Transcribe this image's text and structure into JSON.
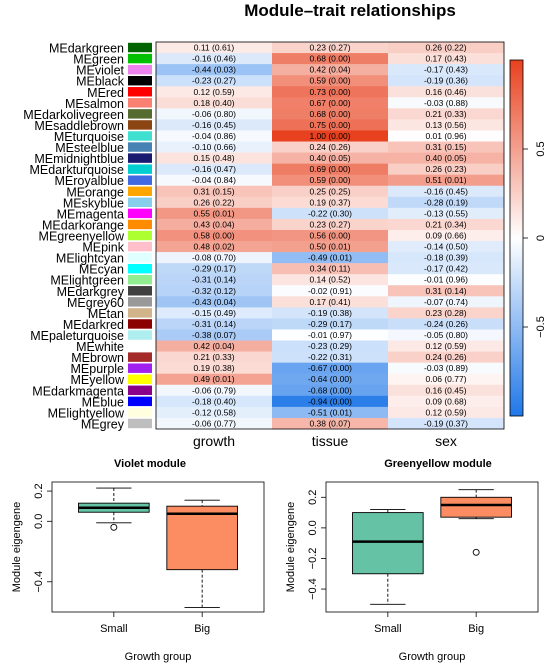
{
  "chart_data": [
    {
      "type": "heatmap",
      "title": "Module–trait relationships",
      "columns": [
        "growth",
        "tissue",
        "sex"
      ],
      "scale_ticks": [
        "0.5",
        "0",
        "−0.5"
      ],
      "scale_range": [
        -1,
        1
      ],
      "scale_colors": {
        "low": "#1f77e8",
        "mid": "#ffffff",
        "high": "#e8411f"
      },
      "rows": [
        {
          "name": "MEdarkgreen",
          "color": "#006400",
          "values": [
            0.11,
            0.23,
            0.26
          ],
          "labels": [
            "0.11 (0.61)",
            "0.23 (0.27)",
            "0.26 (0.22)"
          ]
        },
        {
          "name": "MEgreen",
          "color": "#00c000",
          "values": [
            -0.16,
            0.68,
            0.17
          ],
          "labels": [
            "-0.16 (0.46)",
            "0.68 (0.00)",
            "0.17 (0.43)"
          ]
        },
        {
          "name": "MEviolet",
          "color": "#ee82ee",
          "values": [
            -0.44,
            0.42,
            -0.17
          ],
          "labels": [
            "-0.44 (0.03)",
            "0.42 (0.04)",
            "-0.17 (0.43)"
          ]
        },
        {
          "name": "MEblack",
          "color": "#000000",
          "values": [
            -0.23,
            0.59,
            -0.19
          ],
          "labels": [
            "-0.23 (0.27)",
            "0.59 (0.00)",
            "-0.19 (0.36)"
          ]
        },
        {
          "name": "MEred",
          "color": "#ff0000",
          "values": [
            0.12,
            0.73,
            0.16
          ],
          "labels": [
            "0.12 (0.59)",
            "0.73 (0.00)",
            "0.16 (0.46)"
          ]
        },
        {
          "name": "MEsalmon",
          "color": "#fa8072",
          "values": [
            0.18,
            0.67,
            -0.03
          ],
          "labels": [
            "0.18 (0.40)",
            "0.67 (0.00)",
            "-0.03 (0.88)"
          ]
        },
        {
          "name": "MEdarkolivegreen",
          "color": "#556b2f",
          "values": [
            -0.06,
            0.68,
            0.21
          ],
          "labels": [
            "-0.06 (0.80)",
            "0.68 (0.00)",
            "0.21 (0.33)"
          ]
        },
        {
          "name": "MEsaddlebrown",
          "color": "#8b4513",
          "values": [
            -0.16,
            0.75,
            0.13
          ],
          "labels": [
            "-0.16 (0.45)",
            "0.75 (0.00)",
            "0.13 (0.56)"
          ]
        },
        {
          "name": "MEturquoise",
          "color": "#40e0d0",
          "values": [
            -0.04,
            1.0,
            0.01
          ],
          "labels": [
            "-0.04 (0.86)",
            "1.00 (0.00)",
            "0.01 (0.96)"
          ]
        },
        {
          "name": "MEsteelblue",
          "color": "#4682b4",
          "values": [
            -0.1,
            0.24,
            0.31
          ],
          "labels": [
            "-0.10 (0.66)",
            "0.24 (0.26)",
            "0.31 (0.15)"
          ]
        },
        {
          "name": "MEmidnightblue",
          "color": "#191970",
          "values": [
            0.15,
            0.4,
            0.4
          ],
          "labels": [
            "0.15 (0.48)",
            "0.40 (0.05)",
            "0.40 (0.05)"
          ]
        },
        {
          "name": "MEdarkturquoise",
          "color": "#00ced1",
          "values": [
            -0.16,
            0.69,
            0.26
          ],
          "labels": [
            "-0.16 (0.47)",
            "0.69 (0.00)",
            "0.26 (0.23)"
          ]
        },
        {
          "name": "MEroyalblue",
          "color": "#4169e1",
          "values": [
            -0.04,
            0.59,
            0.51
          ],
          "labels": [
            "-0.04 (0.84)",
            "0.59 (0.00)",
            "0.51 (0.01)"
          ]
        },
        {
          "name": "MEorange",
          "color": "#ffa500",
          "values": [
            0.31,
            0.25,
            -0.16
          ],
          "labels": [
            "0.31 (0.15)",
            "0.25 (0.25)",
            "-0.16 (0.45)"
          ]
        },
        {
          "name": "MEskyblue",
          "color": "#87ceeb",
          "values": [
            0.26,
            0.19,
            -0.28
          ],
          "labels": [
            "0.26 (0.22)",
            "0.19 (0.37)",
            "-0.28 (0.19)"
          ]
        },
        {
          "name": "MEmagenta",
          "color": "#ff00ff",
          "values": [
            0.55,
            -0.22,
            -0.13
          ],
          "labels": [
            "0.55 (0.01)",
            "-0.22 (0.30)",
            "-0.13 (0.55)"
          ]
        },
        {
          "name": "MEdarkorange",
          "color": "#ff8c00",
          "values": [
            0.43,
            0.23,
            0.21
          ],
          "labels": [
            "0.43 (0.04)",
            "0.23 (0.27)",
            "0.21 (0.34)"
          ]
        },
        {
          "name": "MEgreenyellow",
          "color": "#adff2f",
          "values": [
            0.58,
            0.56,
            0.09
          ],
          "labels": [
            "0.58 (0.00)",
            "0.56 (0.00)",
            "0.09 (0.66)"
          ]
        },
        {
          "name": "MEpink",
          "color": "#ffc0cb",
          "values": [
            0.48,
            0.5,
            -0.14
          ],
          "labels": [
            "0.48 (0.02)",
            "0.50 (0.01)",
            "-0.14 (0.50)"
          ]
        },
        {
          "name": "MElightcyan",
          "color": "#e0ffff",
          "values": [
            -0.08,
            -0.49,
            -0.18
          ],
          "labels": [
            "-0.08 (0.70)",
            "-0.49 (0.01)",
            "-0.18 (0.39)"
          ]
        },
        {
          "name": "MEcyan",
          "color": "#00ffff",
          "values": [
            -0.29,
            0.34,
            -0.17
          ],
          "labels": [
            "-0.29 (0.17)",
            "0.34 (0.11)",
            "-0.17 (0.42)"
          ]
        },
        {
          "name": "MElightgreen",
          "color": "#90ee90",
          "values": [
            -0.31,
            0.14,
            -0.01
          ],
          "labels": [
            "-0.31 (0.14)",
            "0.14 (0.52)",
            "-0.01 (0.96)"
          ]
        },
        {
          "name": "MEdarkgrey",
          "color": "#404040",
          "values": [
            -0.32,
            -0.02,
            0.31
          ],
          "labels": [
            "-0.32 (0.12)",
            "-0.02 (0.91)",
            "0.31 (0.14)"
          ]
        },
        {
          "name": "MEgrey60",
          "color": "#999999",
          "values": [
            -0.43,
            0.17,
            -0.07
          ],
          "labels": [
            "-0.43 (0.04)",
            "0.17 (0.41)",
            "-0.07 (0.74)"
          ]
        },
        {
          "name": "MEtan",
          "color": "#d2b48c",
          "values": [
            -0.15,
            -0.19,
            0.23
          ],
          "labels": [
            "-0.15 (0.49)",
            "-0.19 (0.38)",
            "0.23 (0.28)"
          ]
        },
        {
          "name": "MEdarkred",
          "color": "#8b0000",
          "values": [
            -0.31,
            -0.29,
            -0.24
          ],
          "labels": [
            "-0.31 (0.14)",
            "-0.29 (0.17)",
            "-0.24 (0.26)"
          ]
        },
        {
          "name": "MEpaleturquoise",
          "color": "#afeeee",
          "values": [
            -0.38,
            -0.01,
            -0.05
          ],
          "labels": [
            "-0.38 (0.07)",
            "-0.01 (0.97)",
            "-0.05 (0.80)"
          ]
        },
        {
          "name": "MEwhite",
          "color": "#ffffff",
          "values": [
            0.42,
            -0.23,
            0.12
          ],
          "labels": [
            "0.42 (0.04)",
            "-0.23 (0.29)",
            "0.12 (0.59)"
          ]
        },
        {
          "name": "MEbrown",
          "color": "#a52a2a",
          "values": [
            0.21,
            -0.22,
            0.24
          ],
          "labels": [
            "0.21 (0.33)",
            "-0.22 (0.31)",
            "0.24 (0.26)"
          ]
        },
        {
          "name": "MEpurple",
          "color": "#a020f0",
          "values": [
            0.19,
            -0.67,
            -0.03
          ],
          "labels": [
            "0.19 (0.38)",
            "-0.67 (0.00)",
            "-0.03 (0.89)"
          ]
        },
        {
          "name": "MEyellow",
          "color": "#ffff00",
          "values": [
            0.49,
            -0.64,
            0.06
          ],
          "labels": [
            "0.49 (0.01)",
            "-0.64 (0.00)",
            "0.06 (0.77)"
          ]
        },
        {
          "name": "MEdarkmagenta",
          "color": "#8b008b",
          "values": [
            -0.06,
            -0.68,
            0.16
          ],
          "labels": [
            "-0.06 (0.79)",
            "-0.68 (0.00)",
            "0.16 (0.45)"
          ]
        },
        {
          "name": "MEblue",
          "color": "#0000ff",
          "values": [
            -0.18,
            -0.94,
            0.09
          ],
          "labels": [
            "-0.18 (0.40)",
            "-0.94 (0.00)",
            "0.09 (0.68)"
          ]
        },
        {
          "name": "MElightyellow",
          "color": "#ffffe0",
          "values": [
            -0.12,
            -0.51,
            0.12
          ],
          "labels": [
            "-0.12 (0.58)",
            "-0.51 (0.01)",
            "0.12 (0.59)"
          ]
        },
        {
          "name": "MEgrey",
          "color": "#bebebe",
          "values": [
            -0.06,
            0.38,
            -0.19
          ],
          "labels": [
            "-0.06 (0.77)",
            "0.38 (0.07)",
            "-0.19 (0.37)"
          ]
        }
      ]
    },
    {
      "type": "box",
      "title": "Violet module",
      "xlabel": "Growth group",
      "ylabel": "Module eigengene",
      "ylim": [
        -0.6,
        0.26
      ],
      "yticks": [
        0.2,
        0.0,
        -0.4
      ],
      "ytick_labels": [
        "0.2",
        "0.0",
        "−0.4"
      ],
      "categories": [
        "Small",
        "Big"
      ],
      "boxes": [
        {
          "group": "Small",
          "fill": "#66c2a5",
          "whisker_low": -0.01,
          "q1": 0.06,
          "median": 0.09,
          "q3": 0.12,
          "whisker_high": 0.22,
          "outliers": [
            -0.04
          ]
        },
        {
          "group": "Big",
          "fill": "#fc8d62",
          "whisker_low": -0.57,
          "q1": -0.32,
          "median": 0.05,
          "q3": 0.1,
          "whisker_high": 0.14,
          "outliers": []
        }
      ]
    },
    {
      "type": "box",
      "title": "Greenyellow module",
      "xlabel": "Growth group",
      "ylabel": "Module eigengene",
      "ylim": [
        -0.55,
        0.3
      ],
      "yticks": [
        0.2,
        0.0,
        -0.2,
        -0.4
      ],
      "ytick_labels": [
        "0.2",
        "0.0",
        "−0.2",
        "−0.4"
      ],
      "categories": [
        "Small",
        "Big"
      ],
      "boxes": [
        {
          "group": "Small",
          "fill": "#66c2a5",
          "whisker_low": -0.5,
          "q1": -0.3,
          "median": -0.09,
          "q3": 0.1,
          "whisker_high": 0.12,
          "outliers": []
        },
        {
          "group": "Big",
          "fill": "#fc8d62",
          "whisker_low": 0.06,
          "q1": 0.07,
          "median": 0.15,
          "q3": 0.2,
          "whisker_high": 0.25,
          "outliers": [
            -0.16
          ]
        }
      ]
    }
  ]
}
